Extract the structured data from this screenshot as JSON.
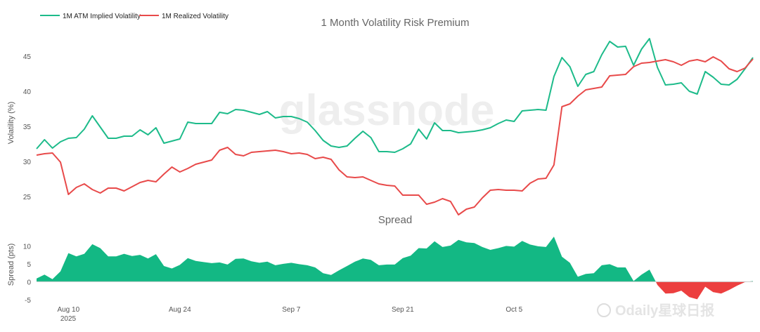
{
  "chart_data": [
    {
      "type": "line",
      "title": "1 Month Volatility Risk Premium",
      "ylabel": "Volatility (%)",
      "ylim": [
        22,
        48
      ],
      "yticks": [
        25,
        30,
        35,
        40,
        45
      ],
      "legend_position": "top-left",
      "series": [
        {
          "name": "1M ATM Implied Volatility",
          "color": "#1dbb8a",
          "values": [
            31.8,
            33.1,
            31.9,
            32.8,
            33.3,
            33.4,
            34.6,
            36.5,
            34.9,
            33.3,
            33.3,
            33.6,
            33.6,
            34.5,
            33.8,
            34.8,
            32.6,
            32.9,
            33.2,
            35.6,
            35.4,
            35.4,
            35.4,
            37.0,
            36.8,
            37.4,
            37.3,
            37.0,
            36.7,
            37.1,
            36.2,
            36.4,
            36.4,
            36.1,
            35.6,
            34.4,
            33.0,
            32.2,
            32.0,
            32.2,
            33.3,
            34.3,
            33.4,
            31.4,
            31.4,
            31.3,
            31.8,
            32.5,
            34.6,
            33.2,
            35.5,
            34.4,
            34.4,
            34.1,
            34.2,
            34.3,
            34.5,
            34.8,
            35.4,
            35.9,
            35.7,
            37.2,
            37.3,
            37.4,
            37.3,
            42.1,
            44.8,
            43.5,
            40.7,
            42.4,
            42.8,
            45.2,
            47.1,
            46.3,
            46.4,
            43.7,
            46.0,
            47.5,
            43.4,
            40.9,
            41.0,
            41.2,
            40.0,
            39.6,
            42.8,
            42.0,
            41.0,
            40.9,
            41.7,
            43.2,
            44.8
          ]
        },
        {
          "name": "1M Realized Volatility",
          "color": "#e84a4a",
          "values": [
            30.9,
            31.1,
            31.2,
            29.9,
            25.3,
            26.3,
            26.8,
            26.0,
            25.5,
            26.2,
            26.2,
            25.8,
            26.4,
            27.0,
            27.3,
            27.1,
            28.2,
            29.2,
            28.5,
            29.0,
            29.6,
            29.9,
            30.2,
            31.6,
            32.0,
            31.0,
            30.8,
            31.3,
            31.4,
            31.5,
            31.6,
            31.4,
            31.1,
            31.2,
            31.0,
            30.4,
            30.6,
            30.3,
            28.8,
            27.8,
            27.7,
            27.8,
            27.3,
            26.8,
            26.6,
            26.5,
            25.2,
            25.2,
            25.2,
            23.9,
            24.2,
            24.7,
            24.3,
            22.4,
            23.2,
            23.5,
            24.8,
            25.9,
            26.0,
            25.9,
            25.9,
            25.8,
            26.9,
            27.5,
            27.6,
            29.5,
            37.8,
            38.2,
            39.3,
            40.2,
            40.4,
            40.6,
            42.2,
            42.3,
            42.4,
            43.5,
            44.0,
            44.1,
            44.3,
            44.5,
            44.2,
            43.7,
            44.3,
            44.5,
            44.2,
            44.9,
            44.3,
            43.2,
            42.8,
            43.3,
            44.6
          ]
        }
      ]
    },
    {
      "type": "area",
      "title": "Spread",
      "ylabel": "Spread (pts)",
      "ylim": [
        -6,
        14
      ],
      "yticks": [
        -5,
        0,
        5,
        10
      ],
      "positive_color": "#13b884",
      "negative_color": "#ec3f3f",
      "series": [
        {
          "name": "",
          "values": [
            0.9,
            2.0,
            0.7,
            2.9,
            8.0,
            7.1,
            7.8,
            10.5,
            9.4,
            7.1,
            7.1,
            7.8,
            7.2,
            7.5,
            6.5,
            7.7,
            4.4,
            3.7,
            4.7,
            6.6,
            5.8,
            5.5,
            5.2,
            5.4,
            4.8,
            6.4,
            6.5,
            5.7,
            5.3,
            5.6,
            4.6,
            5.0,
            5.3,
            4.9,
            4.6,
            4.0,
            2.4,
            1.9,
            3.2,
            4.4,
            5.6,
            6.5,
            6.1,
            4.6,
            4.8,
            4.8,
            6.6,
            7.3,
            9.4,
            9.3,
            11.3,
            9.7,
            10.1,
            11.7,
            11.0,
            10.8,
            9.7,
            8.9,
            9.4,
            10.0,
            9.8,
            11.4,
            10.4,
            9.9,
            9.7,
            12.6,
            7.0,
            5.3,
            1.4,
            2.2,
            2.4,
            4.6,
            4.9,
            4.0,
            4.0,
            0.2,
            2.0,
            3.4,
            -0.9,
            -3.3,
            -3.2,
            -2.5,
            -4.3,
            -4.9,
            -1.4,
            -2.9,
            -3.3,
            -2.3,
            -1.1,
            -0.1,
            0.2
          ]
        }
      ]
    }
  ],
  "x_axis": {
    "ticks": [
      {
        "label": "Aug 10",
        "index": 4
      },
      {
        "label": "Aug 24",
        "index": 18
      },
      {
        "label": "Sep 7",
        "index": 32
      },
      {
        "label": "Sep 21",
        "index": 46
      },
      {
        "label": "Oct 5",
        "index": 60
      }
    ],
    "year_label": "2025"
  },
  "watermark": "glassnode",
  "brand": "Odaily星球日报"
}
